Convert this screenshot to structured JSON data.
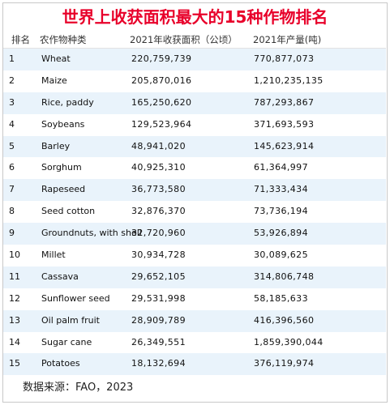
{
  "title": "世界上收获面积最大的15种作物排名",
  "headers": {
    "rank": "排名",
    "crop": "农作物种类",
    "area": "2021年收获面积（公顷）",
    "production": "2021年产量(吨)"
  },
  "rows": [
    {
      "rank": "1",
      "crop": "Wheat",
      "area": "220,759,739",
      "production": "770,877,073"
    },
    {
      "rank": "2",
      "crop": "Maize",
      "area": "205,870,016",
      "production": "1,210,235,135"
    },
    {
      "rank": "3",
      "crop": "Rice, paddy",
      "area": "165,250,620",
      "production": "787,293,867"
    },
    {
      "rank": "4",
      "crop": "Soybeans",
      "area": "129,523,964",
      "production": "371,693,593"
    },
    {
      "rank": "5",
      "crop": "Barley",
      "area": "48,941,020",
      "production": "145,623,914"
    },
    {
      "rank": "6",
      "crop": "Sorghum",
      "area": "40,925,310",
      "production": "61,364,997"
    },
    {
      "rank": "7",
      "crop": "Rapeseed",
      "area": "36,773,580",
      "production": "71,333,434"
    },
    {
      "rank": "8",
      "crop": "Seed cotton",
      "area": "32,876,370",
      "production": "73,736,194"
    },
    {
      "rank": "9",
      "crop": "Groundnuts, with shell",
      "area": "32,720,960",
      "production": "53,926,894"
    },
    {
      "rank": "10",
      "crop": "Millet",
      "area": "30,934,728",
      "production": "30,089,625"
    },
    {
      "rank": "11",
      "crop": "Cassava",
      "area": "29,652,105",
      "production": "314,806,748"
    },
    {
      "rank": "12",
      "crop": "Sunflower seed",
      "area": "29,531,998",
      "production": "58,185,633"
    },
    {
      "rank": "13",
      "crop": "Oil palm fruit",
      "area": "28,909,789",
      "production": "416,396,560"
    },
    {
      "rank": "14",
      "crop": "Sugar cane",
      "area": "26,349,551",
      "production": "1,859,390,044"
    },
    {
      "rank": "15",
      "crop": "Potatoes",
      "area": "18,132,694",
      "production": "376,119,974"
    }
  ],
  "source": "数据来源：FAO，2023"
}
